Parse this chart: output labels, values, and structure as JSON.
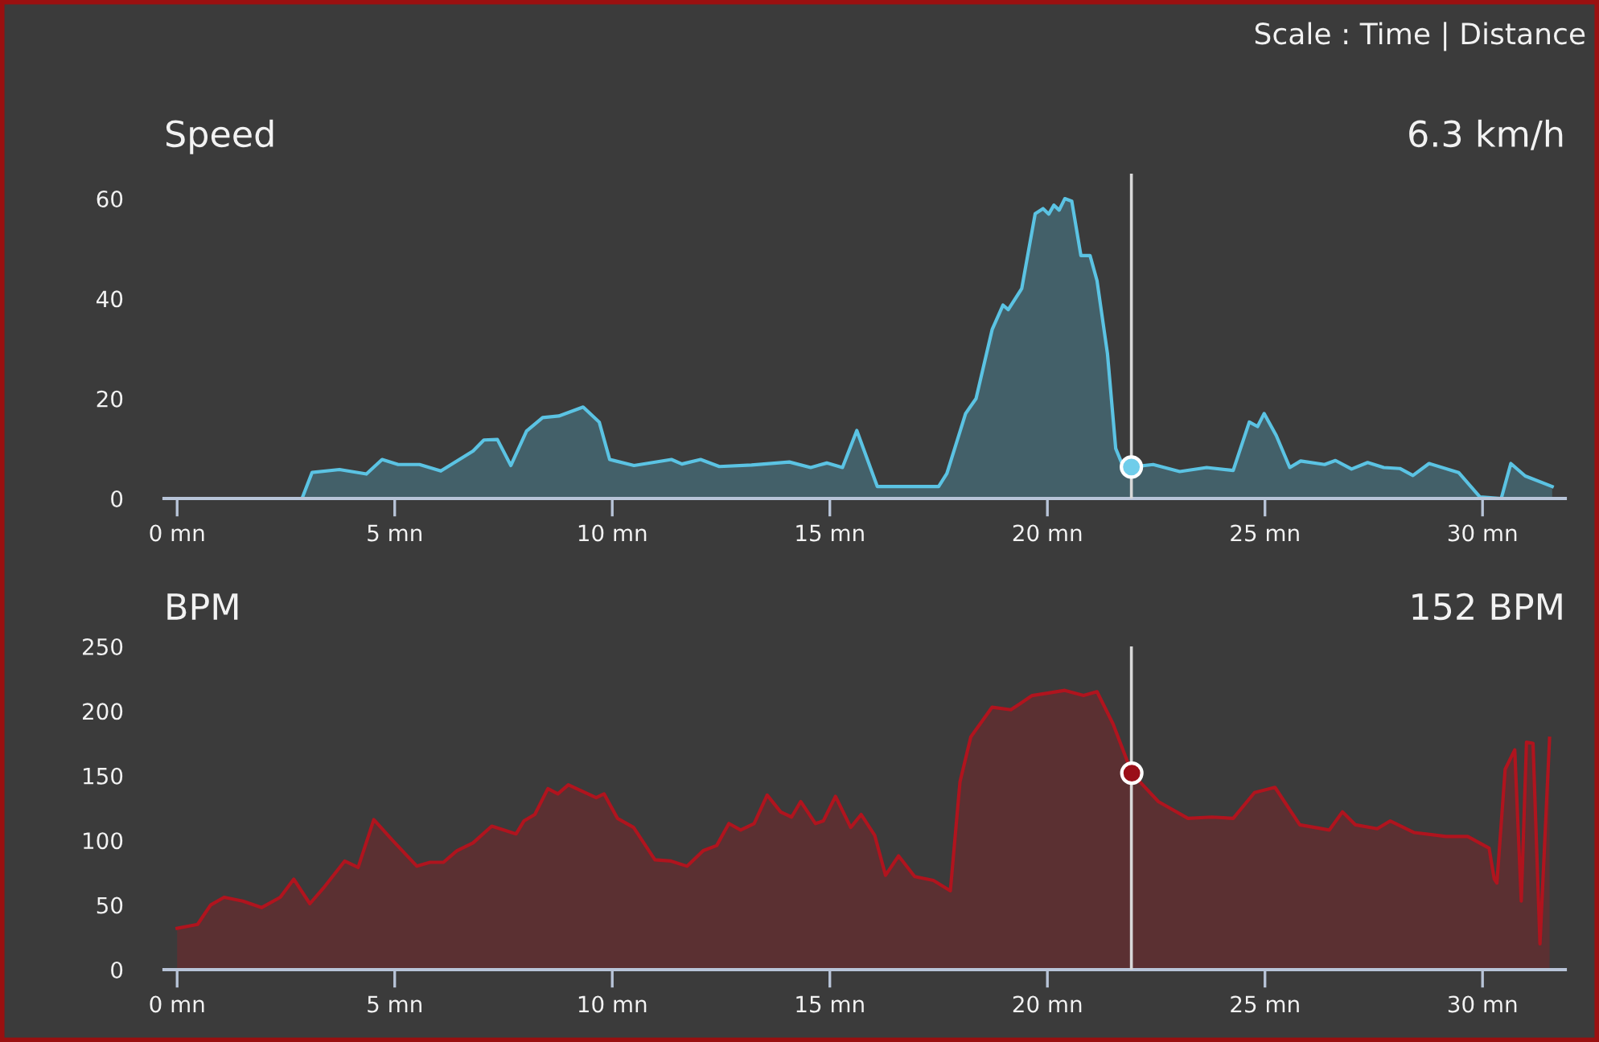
{
  "chart_data": [
    {
      "type": "area",
      "title": "Speed",
      "annotations": [
        "6.3 km/h",
        "Scale : Time | Distance"
      ],
      "xlim": [
        -0.3,
        31.9
      ],
      "xticks": [
        {
          "value": 0,
          "label": "0 mn"
        },
        {
          "value": 5,
          "label": "5 mn"
        },
        {
          "value": 10,
          "label": "10 mn"
        },
        {
          "value": 15,
          "label": "15 mn"
        },
        {
          "value": 20,
          "label": "20 mn"
        },
        {
          "value": 25,
          "label": "25 mn"
        },
        {
          "value": 30,
          "label": "30 mn"
        }
      ],
      "ylim": [
        0,
        65
      ],
      "yticks": [
        0,
        20,
        40,
        60
      ],
      "grid": false,
      "legend": false,
      "ref_lines": [
        {
          "axis": "x",
          "value": 21.93,
          "color": "#d8d8d8"
        }
      ],
      "series": [
        {
          "color": "#5bc3e3",
          "x": [
            0,
            2.87,
            3.1,
            3.73,
            4.35,
            4.71,
            5.08,
            5.57,
            6.06,
            6.8,
            7.05,
            7.36,
            7.67,
            8.03,
            8.4,
            8.77,
            9.33,
            9.7,
            9.94,
            10.5,
            11.36,
            11.6,
            12.03,
            12.46,
            13.2,
            14.07,
            14.56,
            14.93,
            15.29,
            15.62,
            16.09,
            17.5,
            17.69,
            18.12,
            18.36,
            18.73,
            18.98,
            19.1,
            19.41,
            19.72,
            19.9,
            20.03,
            20.15,
            20.27,
            20.4,
            20.56,
            20.77,
            20.98,
            21.14,
            21.38,
            21.57,
            21.75,
            21.93,
            22.43,
            23.04,
            23.66,
            24.27,
            24.64,
            24.83,
            24.98,
            25.26,
            25.57,
            25.82,
            26.37,
            26.62,
            26.99,
            27.36,
            27.73,
            28.1,
            28.4,
            28.77,
            29.45,
            29.94,
            30.43,
            30.65,
            30.98,
            31.6
          ],
          "values": [
            0,
            0,
            5.2,
            5.8,
            4.9,
            7.8,
            6.8,
            6.8,
            5.5,
            9.5,
            11.7,
            11.8,
            6.6,
            13.5,
            16.2,
            16.5,
            18.3,
            15.3,
            7.8,
            6.6,
            7.8,
            6.9,
            7.8,
            6.4,
            6.7,
            7.3,
            6.2,
            7.1,
            6.2,
            13.6,
            2.4,
            2.4,
            5,
            17,
            20,
            33.8,
            38.7,
            37.8,
            42,
            57,
            58,
            56.9,
            58.7,
            57.7,
            60,
            59.5,
            48.6,
            48.6,
            43.6,
            29,
            10,
            6.2,
            6.3,
            6.8,
            5.4,
            6.2,
            5.6,
            15.3,
            14.4,
            17,
            12.6,
            6.2,
            7.5,
            6.8,
            7.6,
            5.9,
            7.2,
            6.2,
            6.0,
            4.6,
            7.0,
            5.2,
            0.3,
            0,
            7.0,
            4.5,
            2.4
          ]
        },
        {
          "type": "scatter",
          "color": "#6fcdea",
          "x": [
            21.93
          ],
          "values": [
            6.3
          ],
          "marker": "circle"
        }
      ]
    },
    {
      "type": "area",
      "title": "BPM",
      "annotations": [
        "152 BPM"
      ],
      "xlim": [
        -0.3,
        31.9
      ],
      "xticks": [
        {
          "value": 0,
          "label": "0 mn"
        },
        {
          "value": 5,
          "label": "5 mn"
        },
        {
          "value": 10,
          "label": "10 mn"
        },
        {
          "value": 15,
          "label": "15 mn"
        },
        {
          "value": 20,
          "label": "20 mn"
        },
        {
          "value": 25,
          "label": "25 mn"
        },
        {
          "value": 30,
          "label": "30 mn"
        }
      ],
      "ylim": [
        0,
        250
      ],
      "yticks": [
        0,
        50,
        100,
        150,
        200,
        250
      ],
      "grid": false,
      "legend": false,
      "ref_lines": [
        {
          "axis": "x",
          "value": 21.93,
          "color": "#d8d8d8"
        }
      ],
      "series": [
        {
          "color": "#b0141e",
          "x": [
            0,
            0.47,
            0.77,
            1.08,
            1.51,
            1.94,
            2.37,
            2.68,
            3.05,
            3.36,
            3.85,
            4.16,
            4.52,
            4.95,
            5.51,
            5.81,
            6.12,
            6.43,
            6.8,
            7.23,
            7.79,
            7.97,
            8.22,
            8.52,
            8.75,
            8.99,
            9.63,
            9.81,
            10.12,
            10.49,
            10.98,
            11.35,
            11.72,
            12.09,
            12.4,
            12.68,
            12.95,
            13.26,
            13.56,
            13.87,
            14.12,
            14.33,
            14.67,
            14.85,
            15.13,
            15.48,
            15.72,
            16.03,
            16.28,
            16.58,
            16.95,
            17.38,
            17.77,
            17.99,
            18.24,
            18.73,
            19.16,
            19.65,
            20.03,
            20.4,
            20.83,
            21.14,
            21.51,
            21.94,
            22.55,
            23.23,
            23.78,
            24.27,
            24.76,
            25.23,
            25.8,
            26.48,
            26.78,
            27.08,
            27.58,
            27.88,
            28.43,
            29.16,
            29.66,
            30.15,
            30.27,
            30.33,
            30.52,
            30.74,
            30.89,
            31.01,
            31.16,
            31.32,
            31.54
          ],
          "values": [
            32,
            35,
            50,
            56,
            53,
            48,
            56,
            70,
            51,
            63,
            84,
            79,
            116,
            100,
            80,
            83,
            83,
            92,
            98,
            111,
            105,
            115,
            120,
            140,
            136,
            143,
            133,
            136,
            117,
            110,
            85,
            84,
            80,
            92,
            96,
            113,
            108,
            113,
            135,
            122,
            118,
            130,
            113,
            115,
            134,
            110,
            120,
            104,
            73,
            88,
            72,
            69,
            61,
            145,
            180,
            203,
            201,
            212,
            214,
            216,
            212,
            215,
            190,
            152,
            130,
            117,
            118,
            117,
            137,
            141,
            112,
            108,
            122,
            112,
            109,
            115,
            106,
            103,
            103,
            94,
            70,
            67,
            155,
            170,
            53,
            176,
            175,
            20,
            179
          ]
        },
        {
          "type": "scatter",
          "color": "#9a0e18",
          "x": [
            21.94
          ],
          "values": [
            152
          ],
          "marker": "circle"
        }
      ]
    }
  ]
}
